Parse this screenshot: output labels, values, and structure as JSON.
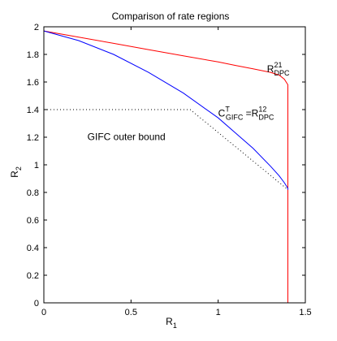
{
  "chart_data": {
    "type": "line",
    "title": "Comparison of rate regions",
    "xlabel": "R",
    "xlabel_sub": "1",
    "ylabel": "R",
    "ylabel_sub": "2",
    "xlim": [
      0,
      1.5
    ],
    "ylim": [
      0,
      2
    ],
    "xticks": [
      0,
      0.5,
      1,
      1.5
    ],
    "xtick_labels": [
      "0",
      "0.5",
      "1",
      "1.5"
    ],
    "yticks": [
      0,
      0.2,
      0.4,
      0.6,
      0.8,
      1,
      1.2,
      1.4,
      1.6,
      1.8,
      2
    ],
    "ytick_labels": [
      "0",
      "0.2",
      "0.4",
      "0.6",
      "0.8",
      "1",
      "1.2",
      "1.4",
      "1.6",
      "1.8",
      "2"
    ],
    "grid": false,
    "series": [
      {
        "color": "#ff0000",
        "style": "solid",
        "x": [
          0,
          0.2,
          0.4,
          0.6,
          0.8,
          1.0,
          1.1,
          1.2,
          1.3,
          1.35,
          1.38,
          1.4,
          1.4,
          1.4
        ],
        "y": [
          1.97,
          1.925,
          1.88,
          1.835,
          1.79,
          1.745,
          1.72,
          1.695,
          1.67,
          1.65,
          1.62,
          1.58,
          1.2,
          0
        ]
      },
      {
        "color": "#0000ff",
        "style": "solid",
        "x": [
          0,
          0.2,
          0.4,
          0.6,
          0.8,
          1.0,
          1.1,
          1.2,
          1.3,
          1.35,
          1.38,
          1.4,
          1.4
        ],
        "y": [
          1.97,
          1.9,
          1.8,
          1.67,
          1.52,
          1.34,
          1.23,
          1.12,
          0.99,
          0.92,
          0.87,
          0.83,
          0.82
        ]
      },
      {
        "color": "#000000",
        "style": "dotted",
        "x": [
          0,
          0.84,
          1.4
        ],
        "y": [
          1.4,
          1.4,
          0.82
        ]
      }
    ],
    "annotations": [
      {
        "id": "dpc21",
        "base": "R",
        "sup": "21",
        "sub": "DPC",
        "x": 1.28,
        "y": 1.67
      },
      {
        "id": "gifc_dpc12",
        "base": "C",
        "sup": "T",
        "sub": "GIFC",
        "mid": " =R",
        "sup2": "12",
        "sub2": "DPC",
        "x": 1.0,
        "y": 1.35
      },
      {
        "id": "outer_bound",
        "text": "GIFC outer bound",
        "x": 0.25,
        "y": 1.18
      }
    ]
  }
}
